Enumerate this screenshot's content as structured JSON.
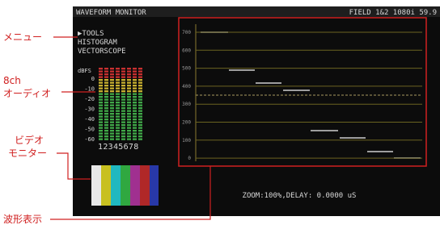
{
  "annotations": {
    "menu": "メニュー",
    "audio": [
      "8ch",
      "オーディオ"
    ],
    "video": [
      "ビデオ",
      "モニター"
    ],
    "waveform": "波形表示"
  },
  "header": {
    "title": "WAVEFORM MONITOR",
    "status": "FIELD 1&2  1080i 59.9"
  },
  "menu": [
    "▶TOOLS",
    "HISTOGRAM",
    "VECTORSCOPE"
  ],
  "audio_meter": {
    "unit": "dBFS",
    "scale": [
      "0",
      "-10",
      "-20",
      "-30",
      "-40",
      "-50",
      "-60"
    ],
    "channels": "12345678"
  },
  "waveform": {
    "y_labels": [
      "700",
      "600",
      "500",
      "400",
      "300",
      "200",
      "100",
      "0"
    ],
    "status": "ZOOM:100%,DELAY: 0.0000 uS"
  }
}
